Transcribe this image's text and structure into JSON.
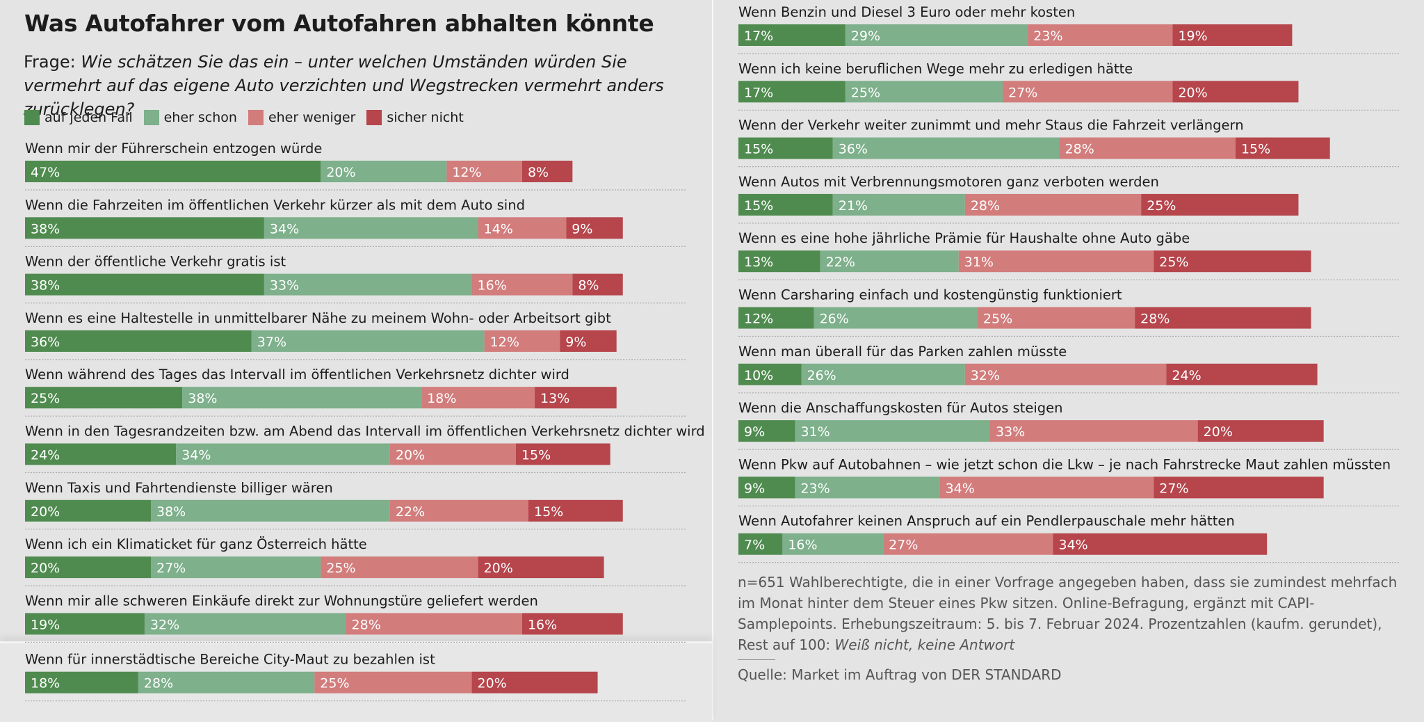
{
  "header": {
    "title": "Was Autofahrer vom Autofahren abhalten könnte",
    "question_prefix": "Frage: ",
    "question_text": "Wie schätzen Sie das ein – unter welchen Umständen würden Sie vermehrt auf das eigene Auto verzichten und Wegstrecken vermehrt anders zurücklegen?"
  },
  "colors": {
    "auf_jeden_fall": "#4f8b4f",
    "eher_schon": "#7db08b",
    "eher_weniger": "#d27c7c",
    "sicher_nicht": "#b6454c"
  },
  "legend": [
    {
      "label": "auf jeden Fall",
      "color": "#4f8b4f"
    },
    {
      "label": "eher schon",
      "color": "#7db08b"
    },
    {
      "label": "eher weniger",
      "color": "#d27c7c"
    },
    {
      "label": "sicher nicht",
      "color": "#b6454c"
    }
  ],
  "chart_data": {
    "type": "bar",
    "orientation": "horizontal",
    "stacked": true,
    "grid": false,
    "legend_position": "top-left",
    "title": "Was Autofahrer vom Autofahren abhalten könnte",
    "series": [
      {
        "name": "auf jeden Fall",
        "color": "#4f8b4f"
      },
      {
        "name": "eher schon",
        "color": "#7db08b"
      },
      {
        "name": "eher weniger",
        "color": "#d27c7c"
      },
      {
        "name": "sicher nicht",
        "color": "#b6454c"
      }
    ],
    "xlim": [
      0,
      100
    ],
    "rows": [
      {
        "label": "Wenn mir der Führerschein entzogen würde",
        "values": [
          47,
          20,
          12,
          8
        ]
      },
      {
        "label": "Wenn die Fahrzeiten im öffentlichen Verkehr kürzer als mit dem Auto sind",
        "values": [
          38,
          34,
          14,
          9
        ]
      },
      {
        "label": "Wenn der öffentliche Verkehr gratis ist",
        "values": [
          38,
          33,
          16,
          8
        ]
      },
      {
        "label": "Wenn es eine Haltestelle in unmittelbarer Nähe zu meinem Wohn- oder Arbeitsort gibt",
        "values": [
          36,
          37,
          12,
          9
        ]
      },
      {
        "label": "Wenn während des Tages das Intervall im öffentlichen Verkehrsnetz dichter wird",
        "values": [
          25,
          38,
          18,
          13
        ]
      },
      {
        "label": "Wenn in den Tagesrandzeiten bzw. am Abend das Intervall im öffentlichen Verkehrsnetz dichter wird",
        "values": [
          24,
          34,
          20,
          15
        ]
      },
      {
        "label": "Wenn Taxis und Fahrtendienste billiger wären",
        "values": [
          20,
          38,
          22,
          15
        ]
      },
      {
        "label": "Wenn ich ein Klimaticket für ganz Österreich hätte",
        "values": [
          20,
          27,
          25,
          20
        ]
      },
      {
        "label": "Wenn mir alle schweren Einkäufe direkt zur Wohnungstüre geliefert werden",
        "values": [
          19,
          32,
          28,
          16
        ]
      },
      {
        "label": "Wenn für innerstädtische Bereiche City-Maut zu bezahlen ist",
        "values": [
          18,
          28,
          25,
          20
        ]
      },
      {
        "label": "Wenn Benzin und Diesel 3 Euro oder mehr kosten",
        "values": [
          17,
          29,
          23,
          19
        ]
      },
      {
        "label": "Wenn ich keine beruflichen Wege mehr zu erledigen hätte",
        "values": [
          17,
          25,
          27,
          20
        ]
      },
      {
        "label": "Wenn der Verkehr weiter zunimmt und mehr Staus die Fahrzeit verlängern",
        "values": [
          15,
          36,
          28,
          15
        ]
      },
      {
        "label": "Wenn Autos mit Verbrennungsmotoren ganz verboten werden",
        "values": [
          15,
          21,
          28,
          25
        ]
      },
      {
        "label": "Wenn es eine hohe jährliche Prämie für Haushalte ohne Auto gäbe",
        "values": [
          13,
          22,
          31,
          25
        ]
      },
      {
        "label": "Wenn Carsharing einfach und kostengünstig funktioniert",
        "values": [
          12,
          26,
          25,
          28
        ]
      },
      {
        "label": "Wenn man überall für das Parken zahlen müsste",
        "values": [
          10,
          26,
          32,
          24
        ]
      },
      {
        "label": "Wenn die Anschaffungskosten für Autos steigen",
        "values": [
          9,
          31,
          33,
          20
        ]
      },
      {
        "label": "Wenn Pkw auf Autobahnen – wie jetzt schon die Lkw – je nach Fahrstrecke Maut zahlen müssten",
        "values": [
          9,
          23,
          34,
          27
        ]
      },
      {
        "label": "Wenn Autofahrer keinen Anspruch auf ein Pendlerpauschale mehr hätten",
        "values": [
          7,
          16,
          27,
          34
        ]
      }
    ]
  },
  "footer": {
    "note": "n=651 Wahlberechtigte, die in einer Vorfrage angegeben haben, dass sie zumindest mehrfach im Monat hinter dem Steuer eines Pkw sitzen. Online-Befragung, ergänzt mit CAPI-Samplepoints. Erhebungszeitraum: 5. bis 7. Februar 2024. Prozentzahlen (kaufm. gerundet), Rest auf 100: ",
    "note_italic": "Weiß nicht, keine Antwort",
    "source": "Quelle: Market im Auftrag von DER STANDARD"
  }
}
